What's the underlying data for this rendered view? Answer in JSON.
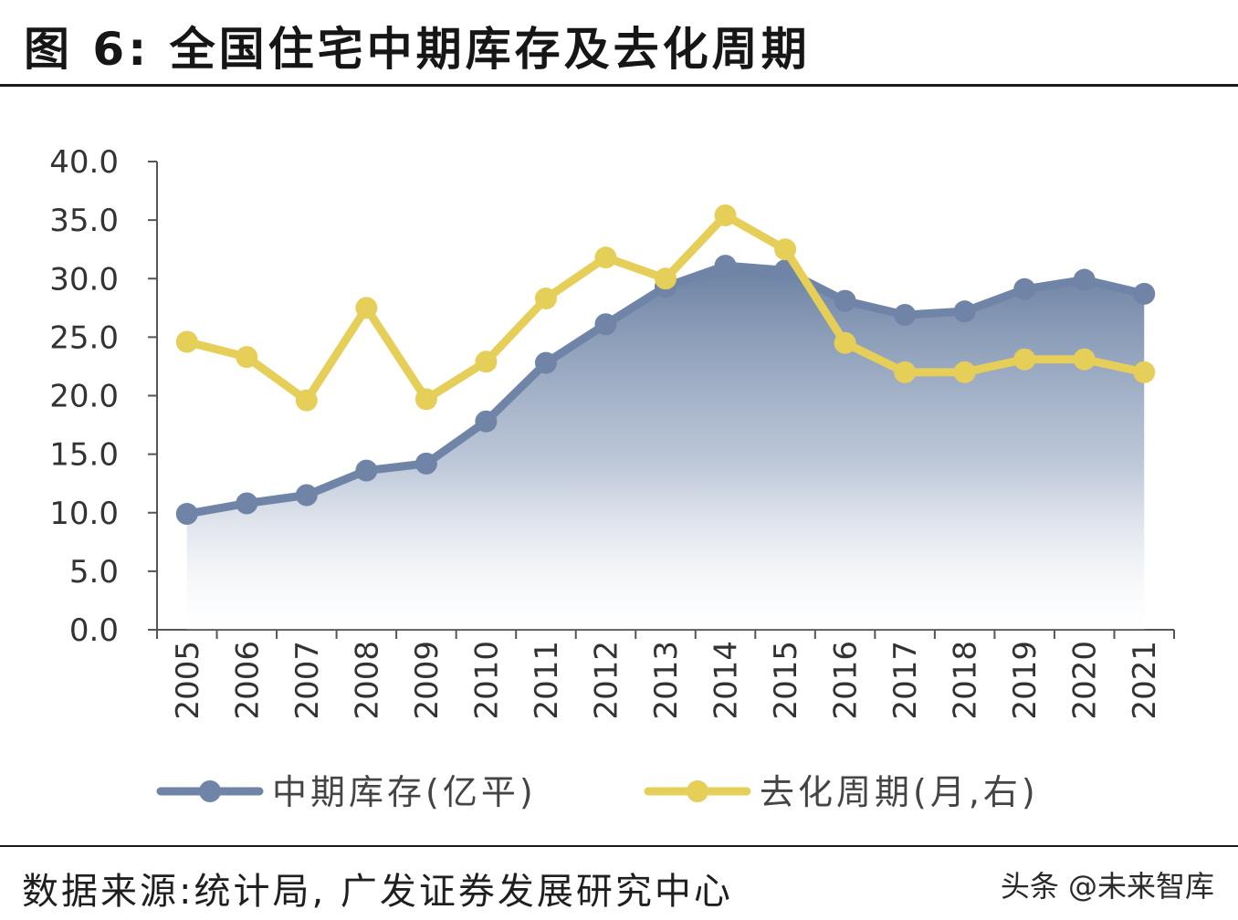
{
  "header": {
    "title": "图 6:  全国住宅中期库存及去化周期"
  },
  "footer": {
    "source": "数据来源:统计局, 广发证券发展研究中心",
    "watermark": "头条 @未来智库"
  },
  "chart_data": {
    "type": "line",
    "title": "",
    "categories": [
      "2005",
      "2006",
      "2007",
      "2008",
      "2009",
      "2010",
      "2011",
      "2012",
      "2013",
      "2014",
      "2015",
      "2016",
      "2017",
      "2018",
      "2019",
      "2020",
      "2021"
    ],
    "y_ticks": [
      "0.0",
      "5.0",
      "10.0",
      "15.0",
      "20.0",
      "25.0",
      "30.0",
      "35.0",
      "40.0"
    ],
    "ylim": [
      0,
      40
    ],
    "grid": false,
    "legend_position": "bottom",
    "series": [
      {
        "name": "中期库存(亿平)",
        "render": "area-line",
        "color": "#6f84a6",
        "values": [
          9.9,
          10.8,
          11.5,
          13.6,
          14.2,
          17.8,
          22.8,
          26.1,
          29.3,
          31.1,
          30.7,
          28.1,
          26.9,
          27.2,
          29.1,
          29.9,
          28.7
        ]
      },
      {
        "name": "去化周期(月,右)",
        "render": "line",
        "color": "#e5cf58",
        "values": [
          24.6,
          23.3,
          19.6,
          27.5,
          19.7,
          22.9,
          28.3,
          31.8,
          30.0,
          35.4,
          32.5,
          24.5,
          22.0,
          22.0,
          23.1,
          23.1,
          22.0
        ]
      }
    ]
  }
}
